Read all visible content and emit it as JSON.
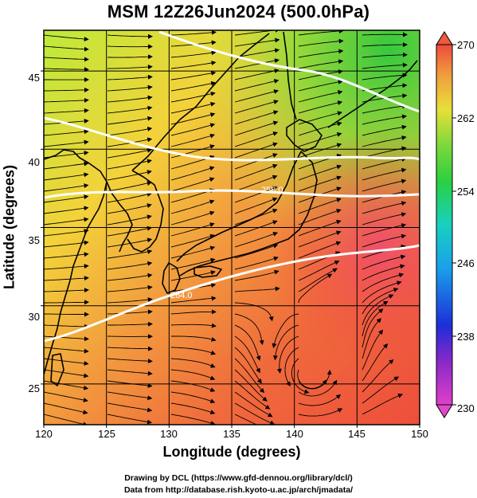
{
  "title": "MSM 12Z26Jun2024 (500.0hPa)",
  "x_axis": {
    "label": "Longitude (degrees)",
    "ticks": [
      "120",
      "125",
      "130",
      "135",
      "140",
      "145",
      "150"
    ]
  },
  "y_axis": {
    "label": "Latitude  (degrees)",
    "ticks": [
      "25",
      "30",
      "35",
      "40",
      "45"
    ]
  },
  "colorbar": {
    "ticks": [
      "270",
      "262",
      "254",
      "246",
      "238",
      "230"
    ]
  },
  "credits": {
    "line1": "Drawing by DCL (https://www.gfd-dennou.org/library/dcl/)",
    "line2": "Data from http://database.rish.kyoto-u.ac.jp/arch/jmadata/"
  },
  "contour_labels": [
    "258.0",
    "264.0"
  ],
  "map_data": {
    "lon_range": [
      120,
      150
    ],
    "lat_range": [
      22.4,
      47.6
    ],
    "value_range": [
      230,
      270
    ],
    "contour_levels": [
      258,
      261,
      264
    ]
  }
}
